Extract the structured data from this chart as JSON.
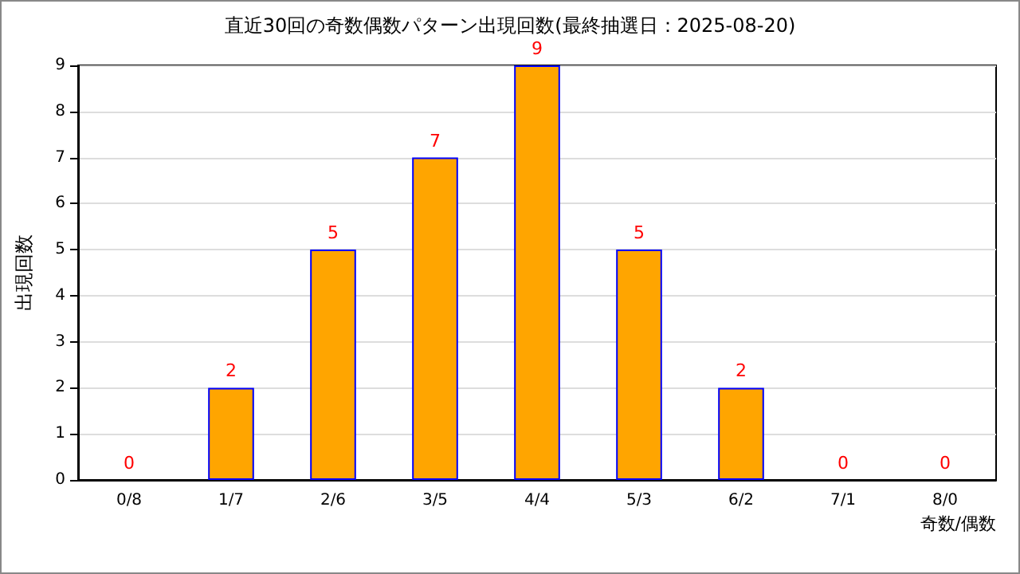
{
  "chart_data": {
    "type": "bar",
    "title": "直近30回の奇数偶数パターン出現回数(最終抽選日：2025-08-20)",
    "xlabel": "奇数/偶数",
    "ylabel": "出現回数",
    "categories": [
      "0/8",
      "1/7",
      "2/6",
      "3/5",
      "4/4",
      "5/3",
      "6/2",
      "7/1",
      "8/0"
    ],
    "values": [
      0,
      2,
      5,
      7,
      9,
      5,
      2,
      0,
      0
    ],
    "color": "#ffa500",
    "ylim": [
      0,
      9
    ],
    "yticks": [
      0,
      1,
      2,
      3,
      4,
      5,
      6,
      7,
      8,
      9
    ],
    "grid": "y",
    "data_labels": true
  }
}
